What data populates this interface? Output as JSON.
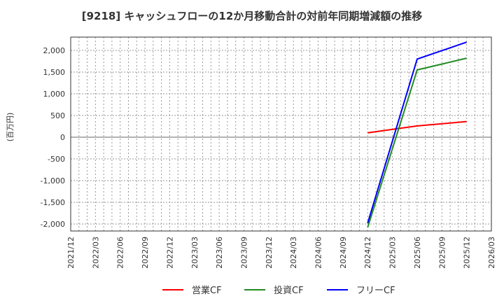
{
  "title": "[9218]  キャッシュフローの12か月移動合計の対前年同期増減額の推移",
  "chart_data": {
    "type": "line",
    "title": "[9218]  キャッシュフローの12か月移動合計の対前年同期増減額の推移",
    "xlabel": "",
    "ylabel": "(百万円)",
    "ylim": [
      -2150,
      2300
    ],
    "yticks": [
      2000,
      1500,
      1000,
      500,
      0,
      -500,
      -1000,
      -1500,
      -2000
    ],
    "ytick_labels": [
      "2,000",
      "1,500",
      "1,000",
      "500",
      "0",
      "-500",
      "-1,000",
      "-1,500",
      "-2,000"
    ],
    "x_tick_labels": [
      "2021/12",
      "2022/03",
      "2022/06",
      "2022/09",
      "2022/12",
      "2023/03",
      "2023/06",
      "2023/09",
      "2023/12",
      "2024/03",
      "2024/06",
      "2024/09",
      "2024/12",
      "2025/03",
      "2025/06",
      "2025/09",
      "2025/12",
      "2026/03"
    ],
    "grid": true,
    "legend_position": "bottom",
    "x": [
      "2024/12",
      "2025/06",
      "2025/12"
    ],
    "series": [
      {
        "name": "営業CF",
        "color": "#ff0000",
        "values": [
          100,
          260,
          360
        ]
      },
      {
        "name": "投資CF",
        "color": "#228b22",
        "values": [
          -2080,
          1550,
          1820
        ]
      },
      {
        "name": "フリーCF",
        "color": "#0000ff",
        "values": [
          -1980,
          1800,
          2190
        ]
      }
    ]
  },
  "legend": {
    "items": [
      {
        "label": "営業CF",
        "color": "#ff0000"
      },
      {
        "label": "投資CF",
        "color": "#228b22"
      },
      {
        "label": "フリーCF",
        "color": "#0000ff"
      }
    ]
  }
}
